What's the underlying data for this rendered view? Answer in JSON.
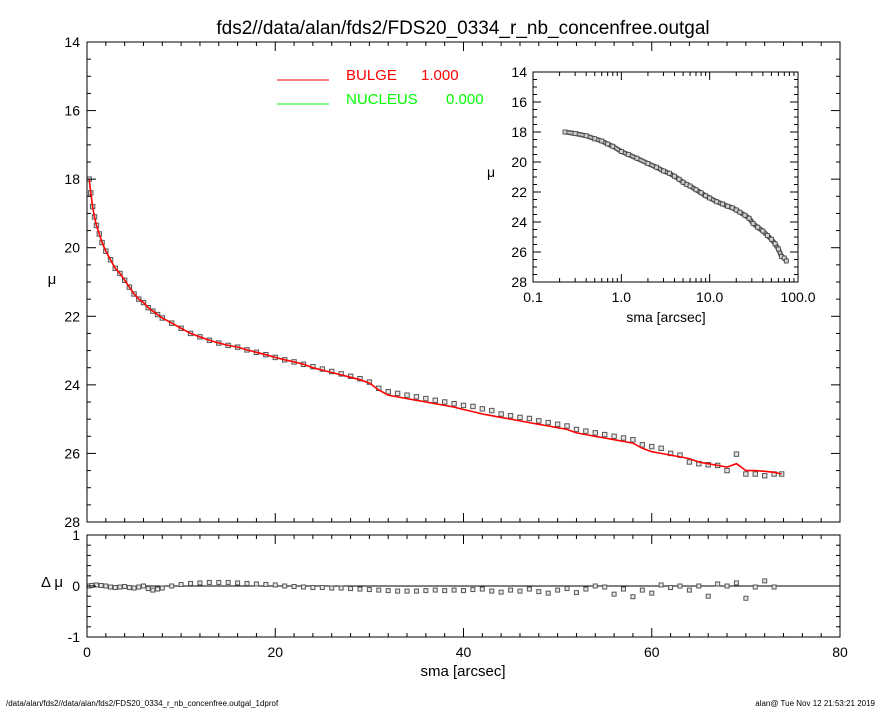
{
  "chart_data": [
    {
      "id": "main",
      "type": "scatter",
      "title": "fds2//data/alan/fds2/FDS20_0334_r_nb_concenfree.outgal",
      "xlabel": "sma [arcsec]",
      "ylabel": "μ",
      "xlim": [
        0,
        80
      ],
      "ylim": [
        28,
        14
      ],
      "y_inverted": true,
      "x_ticks": [
        "0",
        "20",
        "40",
        "60",
        "80"
      ],
      "y_ticks": [
        "14",
        "16",
        "18",
        "20",
        "22",
        "24",
        "26",
        "28"
      ],
      "legend": {
        "placement": "top-center",
        "entries": [
          {
            "name": "BULGE",
            "value": "1.000",
            "color": "#ff0000"
          },
          {
            "name": "NUCLEUS",
            "value": "0.000",
            "color": "#00ff00"
          }
        ]
      },
      "series": [
        {
          "name": "data",
          "style": "open-square",
          "color": "#555555",
          "x": [
            0.23,
            0.4,
            0.6,
            0.8,
            1.0,
            1.3,
            1.6,
            2.0,
            2.5,
            3.0,
            3.5,
            4.0,
            4.5,
            5.0,
            5.5,
            6.0,
            6.5,
            7.0,
            7.5,
            8.0,
            9.0,
            10.0,
            11.0,
            12.0,
            13.0,
            14.0,
            15.0,
            16.0,
            17.0,
            18.0,
            19.0,
            20.0,
            21.0,
            22.0,
            23.0,
            24.0,
            25.0,
            26.0,
            27.0,
            28.0,
            29.0,
            30.0,
            31.0,
            32.0,
            33.0,
            34.0,
            35.0,
            36.0,
            37.0,
            38.0,
            39.0,
            40.0,
            41.0,
            42.0,
            43.0,
            44.0,
            45.0,
            46.0,
            47.0,
            48.0,
            49.0,
            50.0,
            51.0,
            52.0,
            53.0,
            54.0,
            55.0,
            56.0,
            57.0,
            58.0,
            59.0,
            60.0,
            61.0,
            62.0,
            63.0,
            64.0,
            65.0,
            66.0,
            67.0,
            68.0,
            69.0,
            70.0,
            71.0,
            72.0,
            73.0,
            73.8
          ],
          "y": [
            18.0,
            18.4,
            18.8,
            19.1,
            19.35,
            19.6,
            19.85,
            20.1,
            20.35,
            20.6,
            20.75,
            20.95,
            21.15,
            21.35,
            21.5,
            21.6,
            21.75,
            21.85,
            21.95,
            22.05,
            22.2,
            22.35,
            22.5,
            22.6,
            22.7,
            22.78,
            22.85,
            22.9,
            22.98,
            23.05,
            23.12,
            23.2,
            23.27,
            23.33,
            23.4,
            23.47,
            23.54,
            23.61,
            23.68,
            23.75,
            23.82,
            23.92,
            24.1,
            24.2,
            24.25,
            24.3,
            24.35,
            24.4,
            24.45,
            24.5,
            24.55,
            24.6,
            24.63,
            24.7,
            24.75,
            24.85,
            24.9,
            24.95,
            24.98,
            25.05,
            25.1,
            25.15,
            25.2,
            25.3,
            25.35,
            25.4,
            25.45,
            25.5,
            25.55,
            25.6,
            25.75,
            25.8,
            25.85,
            26.0,
            26.05,
            26.25,
            26.3,
            26.33,
            26.35,
            26.5,
            26.02,
            26.6,
            26.6,
            26.65,
            26.6,
            26.6
          ]
        },
        {
          "name": "BULGE",
          "style": "line",
          "color": "#ff0000",
          "x": [
            0.23,
            0.4,
            0.6,
            0.8,
            1.0,
            1.3,
            1.6,
            2.0,
            2.5,
            3.0,
            3.5,
            4.0,
            4.5,
            5.0,
            5.5,
            6.0,
            6.5,
            7.0,
            7.5,
            8.0,
            9.0,
            10.0,
            11.0,
            12.0,
            13.0,
            14.0,
            15.0,
            16.0,
            17.0,
            18.0,
            19.0,
            20.0,
            21.0,
            22.0,
            23.0,
            24.0,
            25.0,
            26.0,
            27.0,
            28.0,
            29.0,
            30.0,
            31.0,
            32.0,
            33.0,
            34.0,
            35.0,
            36.0,
            37.0,
            38.0,
            39.0,
            40.0,
            41.0,
            42.0,
            43.0,
            44.0,
            45.0,
            46.0,
            47.0,
            48.0,
            49.0,
            50.0,
            51.0,
            52.0,
            53.0,
            54.0,
            55.0,
            56.0,
            57.0,
            58.0,
            59.0,
            60.0,
            61.0,
            62.0,
            63.0,
            64.0,
            65.0,
            66.0,
            67.0,
            68.0,
            69.0,
            70.0,
            71.0,
            72.0,
            73.0,
            73.8
          ],
          "y": [
            18.0,
            18.4,
            18.8,
            19.1,
            19.35,
            19.6,
            19.85,
            20.1,
            20.35,
            20.6,
            20.75,
            20.95,
            21.15,
            21.35,
            21.5,
            21.6,
            21.75,
            21.85,
            21.95,
            22.05,
            22.2,
            22.35,
            22.5,
            22.6,
            22.7,
            22.78,
            22.85,
            22.9,
            22.98,
            23.05,
            23.12,
            23.2,
            23.27,
            23.33,
            23.4,
            23.5,
            23.57,
            23.64,
            23.71,
            23.78,
            23.85,
            23.95,
            24.15,
            24.3,
            24.35,
            24.4,
            24.45,
            24.5,
            24.55,
            24.6,
            24.65,
            24.72,
            24.78,
            24.85,
            24.9,
            24.95,
            25.0,
            25.05,
            25.1,
            25.15,
            25.2,
            25.25,
            25.3,
            25.4,
            25.45,
            25.5,
            25.55,
            25.6,
            25.65,
            25.7,
            25.85,
            25.95,
            26.0,
            26.05,
            26.1,
            26.15,
            26.25,
            26.3,
            26.35,
            26.4,
            26.3,
            26.5,
            26.5,
            26.52,
            26.55,
            26.6
          ]
        }
      ]
    },
    {
      "id": "residual",
      "type": "scatter",
      "xlabel": "sma [arcsec]",
      "ylabel": "Δ μ",
      "xlim": [
        0,
        80
      ],
      "ylim": [
        -1,
        1
      ],
      "x_ticks": [
        "0",
        "20",
        "40",
        "60",
        "80"
      ],
      "y_ticks": [
        "1",
        "0",
        "-1"
      ],
      "reference_line": 0,
      "series": [
        {
          "name": "residual",
          "style": "open-square",
          "color": "#555555",
          "x": [
            0.23,
            0.5,
            1.0,
            1.5,
            2.0,
            2.5,
            3.0,
            3.5,
            4.0,
            4.5,
            5.0,
            5.5,
            6.0,
            6.5,
            7.0,
            7.5,
            8.0,
            9.0,
            10.0,
            11.0,
            12.0,
            13.0,
            14.0,
            15.0,
            16.0,
            17.0,
            18.0,
            19.0,
            20.0,
            21.0,
            22.0,
            23.0,
            24.0,
            25.0,
            26.0,
            27.0,
            28.0,
            29.0,
            30.0,
            31.0,
            32.0,
            33.0,
            34.0,
            35.0,
            36.0,
            37.0,
            38.0,
            39.0,
            40.0,
            41.0,
            42.0,
            43.0,
            44.0,
            45.0,
            46.0,
            47.0,
            48.0,
            49.0,
            50.0,
            51.0,
            52.0,
            53.0,
            54.0,
            55.0,
            56.0,
            57.0,
            58.0,
            59.0,
            60.0,
            61.0,
            62.0,
            63.0,
            64.0,
            65.0,
            66.0,
            67.0,
            68.0,
            69.0,
            70.0,
            71.0,
            72.0,
            73.0
          ],
          "y": [
            0.0,
            0.01,
            0.02,
            0.01,
            0.0,
            -0.02,
            -0.03,
            -0.02,
            -0.01,
            -0.03,
            -0.04,
            -0.02,
            0.0,
            -0.05,
            -0.08,
            -0.06,
            -0.04,
            0.0,
            0.03,
            0.05,
            0.06,
            0.07,
            0.07,
            0.07,
            0.06,
            0.05,
            0.04,
            0.03,
            0.02,
            0.0,
            -0.01,
            -0.02,
            -0.03,
            -0.03,
            -0.04,
            -0.04,
            -0.05,
            -0.06,
            -0.07,
            -0.08,
            -0.09,
            -0.1,
            -0.1,
            -0.1,
            -0.09,
            -0.08,
            -0.09,
            -0.08,
            -0.09,
            -0.07,
            -0.06,
            -0.1,
            -0.12,
            -0.08,
            -0.1,
            -0.06,
            -0.11,
            -0.14,
            -0.08,
            -0.05,
            -0.13,
            -0.06,
            0.0,
            -0.02,
            -0.16,
            -0.06,
            -0.21,
            -0.08,
            -0.14,
            0.02,
            -0.03,
            0.0,
            -0.08,
            0.0,
            -0.2,
            0.04,
            0.0,
            0.06,
            -0.24,
            -0.02,
            0.1,
            -0.02
          ]
        }
      ]
    },
    {
      "id": "inset",
      "type": "scatter",
      "xlabel": "sma [arcsec]",
      "ylabel": "μ",
      "x_scale": "log",
      "xlim": [
        0.1,
        100
      ],
      "ylim": [
        28,
        14
      ],
      "y_inverted": true,
      "x_ticks": [
        "0.1",
        "1.0",
        "10.0",
        "100.0"
      ],
      "y_ticks": [
        "14",
        "16",
        "18",
        "20",
        "22",
        "24",
        "26",
        "28"
      ],
      "series": [
        {
          "name": "data",
          "style": "open-square",
          "color": "#555555",
          "x": [
            0.23,
            0.3,
            0.4,
            0.5,
            0.6,
            0.7,
            0.8,
            1.0,
            1.2,
            1.5,
            2.0,
            2.5,
            3.0,
            3.5,
            4.0,
            4.5,
            5.0,
            5.5,
            6.0,
            7.0,
            8.0,
            9.0,
            10.0,
            12.0,
            14.0,
            16.0,
            18.0,
            20.0,
            22.0,
            25.0,
            28.0,
            31.0,
            35.0,
            40.0,
            45.0,
            50.0,
            55.0,
            60.0,
            65.0,
            70.0,
            73.8
          ],
          "y": [
            18.0,
            18.1,
            18.25,
            18.45,
            18.6,
            18.8,
            18.95,
            19.3,
            19.5,
            19.75,
            20.1,
            20.35,
            20.6,
            20.75,
            20.95,
            21.15,
            21.35,
            21.5,
            21.6,
            21.85,
            22.05,
            22.25,
            22.4,
            22.65,
            22.8,
            22.95,
            23.05,
            23.2,
            23.35,
            23.55,
            23.75,
            24.1,
            24.35,
            24.6,
            24.9,
            25.15,
            25.45,
            25.8,
            26.3,
            26.4,
            26.6
          ]
        }
      ]
    }
  ],
  "footer": {
    "left": "/data/alan/fds2//data/alan/fds2/FDS20_0334_r_nb_concenfree.outgal_1dprof",
    "right": "alan@  Tue Nov 12 21:53:21 2019"
  }
}
